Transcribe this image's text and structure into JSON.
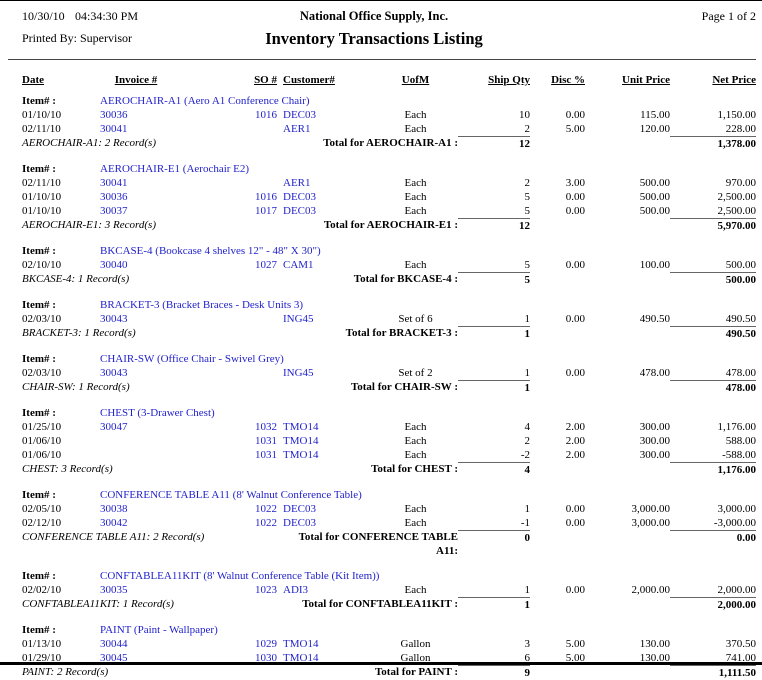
{
  "header": {
    "date": "10/30/10",
    "time": "04:34:30 PM",
    "company": "National Office Supply, Inc.",
    "page_label": "Page 1 of 2",
    "printed_by": "Printed By: Supervisor",
    "report_title": "Inventory Transactions Listing"
  },
  "colors": {
    "link_blue": "#2222CC",
    "text": "#000000",
    "total_rule": "#666666"
  },
  "table": {
    "item_label": "Item# :",
    "columns": [
      "Date",
      "Invoice #",
      "SO #",
      "Customer#",
      "UofM",
      "Ship Qty",
      "Disc %",
      "Unit Price",
      "Net Price"
    ],
    "sections": [
      {
        "item": "AEROCHAIR-A1 (Aero A1 Conference Chair)",
        "rows": [
          {
            "date": "01/10/10",
            "invoice": "30036",
            "so": "1016",
            "customer": "DEC03",
            "uofm": "Each",
            "qty": "10",
            "disc": "0.00",
            "unit": "115.00",
            "net": "1,150.00"
          },
          {
            "date": "02/11/10",
            "invoice": "30041",
            "so": "",
            "customer": "AER1",
            "uofm": "Each",
            "qty": "2",
            "disc": "5.00",
            "unit": "120.00",
            "net": "228.00"
          }
        ],
        "records": "AEROCHAIR-A1: 2 Record(s)",
        "total_label": "Total for AEROCHAIR-A1 :",
        "total_qty": "12",
        "total_net": "1,378.00"
      },
      {
        "item": "AEROCHAIR-E1 (Aerochair E2)",
        "rows": [
          {
            "date": "02/11/10",
            "invoice": "30041",
            "so": "",
            "customer": "AER1",
            "uofm": "Each",
            "qty": "2",
            "disc": "3.00",
            "unit": "500.00",
            "net": "970.00"
          },
          {
            "date": "01/10/10",
            "invoice": "30036",
            "so": "1016",
            "customer": "DEC03",
            "uofm": "Each",
            "qty": "5",
            "disc": "0.00",
            "unit": "500.00",
            "net": "2,500.00"
          },
          {
            "date": "01/10/10",
            "invoice": "30037",
            "so": "1017",
            "customer": "DEC03",
            "uofm": "Each",
            "qty": "5",
            "disc": "0.00",
            "unit": "500.00",
            "net": "2,500.00"
          }
        ],
        "records": "AEROCHAIR-E1: 3 Record(s)",
        "total_label": "Total for AEROCHAIR-E1 :",
        "total_qty": "12",
        "total_net": "5,970.00"
      },
      {
        "item": "BKCASE-4 (Bookcase 4 shelves 12\" - 48\" X 30\")",
        "rows": [
          {
            "date": "02/10/10",
            "invoice": "30040",
            "so": "1027",
            "customer": "CAM1",
            "uofm": "Each",
            "qty": "5",
            "disc": "0.00",
            "unit": "100.00",
            "net": "500.00"
          }
        ],
        "records": "BKCASE-4: 1 Record(s)",
        "total_label": "Total for BKCASE-4 :",
        "total_qty": "5",
        "total_net": "500.00"
      },
      {
        "item": "BRACKET-3 (Bracket Braces - Desk Units 3)",
        "rows": [
          {
            "date": "02/03/10",
            "invoice": "30043",
            "so": "",
            "customer": "ING45",
            "uofm": "Set of 6",
            "qty": "1",
            "disc": "0.00",
            "unit": "490.50",
            "net": "490.50"
          }
        ],
        "records": "BRACKET-3: 1 Record(s)",
        "total_label": "Total for BRACKET-3 :",
        "total_qty": "1",
        "total_net": "490.50"
      },
      {
        "item": "CHAIR-SW (Office Chair - Swivel Grey)",
        "rows": [
          {
            "date": "02/03/10",
            "invoice": "30043",
            "so": "",
            "customer": "ING45",
            "uofm": "Set of 2",
            "qty": "1",
            "disc": "0.00",
            "unit": "478.00",
            "net": "478.00"
          }
        ],
        "records": "CHAIR-SW: 1 Record(s)",
        "total_label": "Total for CHAIR-SW :",
        "total_qty": "1",
        "total_net": "478.00"
      },
      {
        "item": "CHEST (3-Drawer Chest)",
        "rows": [
          {
            "date": "01/25/10",
            "invoice": "30047",
            "so": "1032",
            "customer": "TMO14",
            "uofm": "Each",
            "qty": "4",
            "disc": "2.00",
            "unit": "300.00",
            "net": "1,176.00"
          },
          {
            "date": "01/06/10",
            "invoice": "",
            "so": "1031",
            "customer": "TMO14",
            "uofm": "Each",
            "qty": "2",
            "disc": "2.00",
            "unit": "300.00",
            "net": "588.00"
          },
          {
            "date": "01/06/10",
            "invoice": "",
            "so": "1031",
            "customer": "TMO14",
            "uofm": "Each",
            "qty": "-2",
            "disc": "2.00",
            "unit": "300.00",
            "net": "-588.00"
          }
        ],
        "records": "CHEST: 3 Record(s)",
        "total_label": "Total for CHEST :",
        "total_qty": "4",
        "total_net": "1,176.00"
      },
      {
        "item": "CONFERENCE TABLE A11 (8' Walnut Conference Table)",
        "rows": [
          {
            "date": "02/05/10",
            "invoice": "30038",
            "so": "1022",
            "customer": "DEC03",
            "uofm": "Each",
            "qty": "1",
            "disc": "0.00",
            "unit": "3,000.00",
            "net": "3,000.00"
          },
          {
            "date": "02/12/10",
            "invoice": "30042",
            "so": "1022",
            "customer": "DEC03",
            "uofm": "Each",
            "qty": "-1",
            "disc": "0.00",
            "unit": "3,000.00",
            "net": "-3,000.00"
          }
        ],
        "records": "CONFERENCE TABLE A11: 2 Record(s)",
        "total_label": "Total for CONFERENCE TABLE",
        "total_label_line2": "A11:",
        "total_qty": "0",
        "total_net": "0.00"
      },
      {
        "item": "CONFTABLEA11KIT (8' Walnut Conference Table (Kit Item))",
        "rows": [
          {
            "date": "02/02/10",
            "invoice": "30035",
            "so": "1023",
            "customer": "ADI3",
            "uofm": "Each",
            "qty": "1",
            "disc": "0.00",
            "unit": "2,000.00",
            "net": "2,000.00"
          }
        ],
        "records": "CONFTABLEA11KIT: 1 Record(s)",
        "total_label": "Total for CONFTABLEA11KIT :",
        "total_qty": "1",
        "total_net": "2,000.00"
      },
      {
        "item": "PAINT (Paint - Wallpaper)",
        "rows": [
          {
            "date": "01/13/10",
            "invoice": "30044",
            "so": "1029",
            "customer": "TMO14",
            "uofm": "Gallon",
            "qty": "3",
            "disc": "5.00",
            "unit": "130.00",
            "net": "370.50"
          },
          {
            "date": "01/29/10",
            "invoice": "30045",
            "so": "1030",
            "customer": "TMO14",
            "uofm": "Gallon",
            "qty": "6",
            "disc": "5.00",
            "unit": "130.00",
            "net": "741.00"
          }
        ],
        "records": "PAINT: 2 Record(s)",
        "total_label": "Total for PAINT :",
        "total_qty": "9",
        "total_net": "1,111.50"
      }
    ]
  }
}
